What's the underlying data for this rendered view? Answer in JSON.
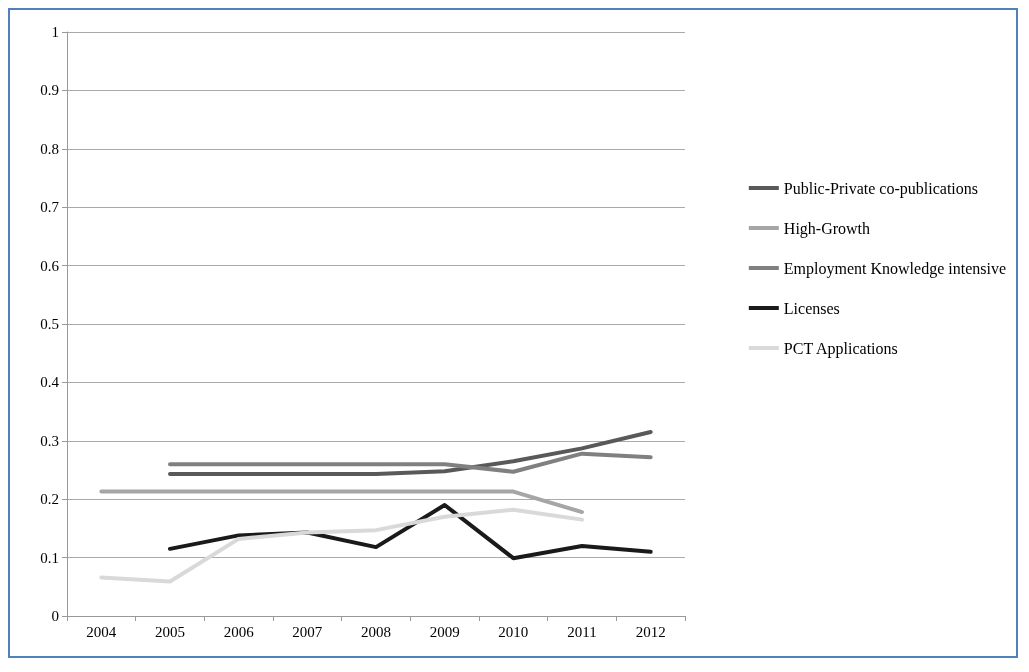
{
  "chart_data": {
    "type": "line",
    "categories": [
      "2004",
      "2005",
      "2006",
      "2007",
      "2008",
      "2009",
      "2010",
      "2011",
      "2012"
    ],
    "series": [
      {
        "name": "Public-Private co-publications",
        "color": "#595959",
        "values": [
          null,
          0.243,
          0.243,
          0.243,
          0.243,
          0.248,
          0.265,
          0.287,
          0.315
        ]
      },
      {
        "name": "High-Growth",
        "color": "#a6a6a6",
        "values": [
          0.213,
          0.213,
          0.213,
          0.213,
          0.213,
          0.213,
          0.213,
          0.178,
          null
        ]
      },
      {
        "name": "Employment Knowledge intensive",
        "color": "#808080",
        "values": [
          null,
          0.26,
          0.26,
          0.26,
          0.26,
          0.26,
          0.247,
          0.278,
          0.272
        ]
      },
      {
        "name": "Licenses",
        "color": "#1a1a1a",
        "values": [
          null,
          0.115,
          0.138,
          0.143,
          0.118,
          0.19,
          0.099,
          0.12,
          0.11
        ]
      },
      {
        "name": "PCT Applications",
        "color": "#d9d9d9",
        "values": [
          0.066,
          0.059,
          0.132,
          0.143,
          0.147,
          0.17,
          0.182,
          0.165,
          null
        ]
      }
    ],
    "ylim": [
      0,
      1
    ],
    "yticks": [
      0,
      0.1,
      0.2,
      0.3,
      0.4,
      0.5,
      0.6,
      0.7,
      0.8,
      0.9,
      1
    ],
    "grid": "y",
    "legend": "right",
    "marker": "none",
    "line_style": "solid"
  }
}
